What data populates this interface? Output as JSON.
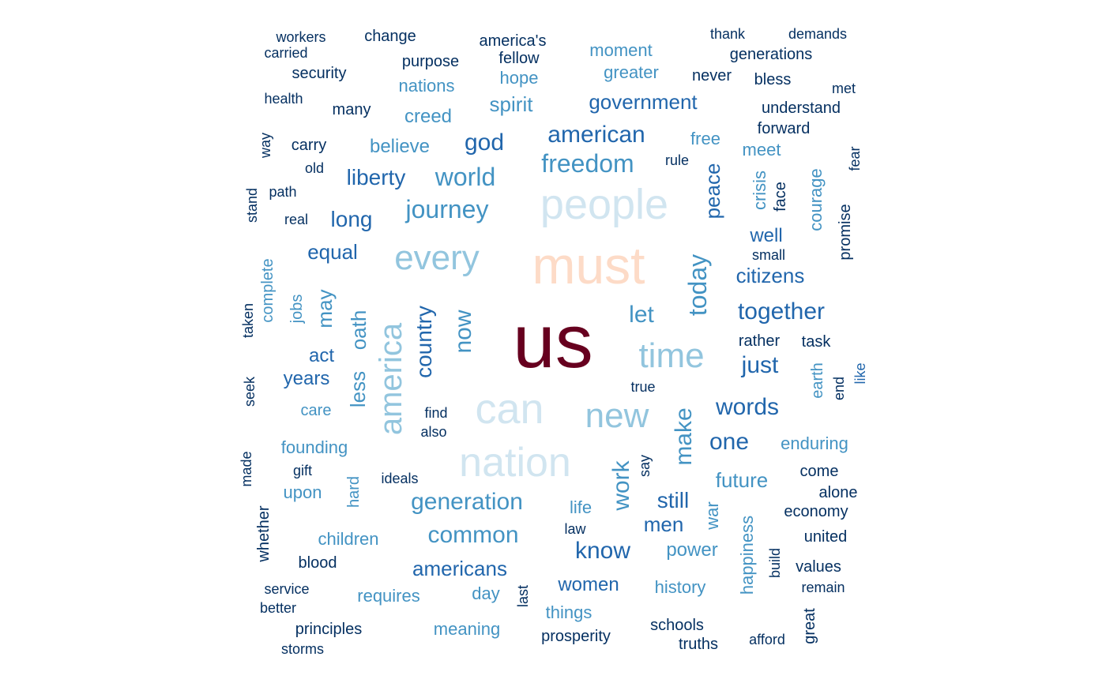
{
  "colors": {
    "c1": "#67001f",
    "c2": "#fddbc7",
    "c3": "#d1e5f0",
    "c4": "#92c5de",
    "c5": "#4393c3",
    "c6": "#2166ac",
    "c7": "#053061"
  },
  "words": [
    {
      "text": "us",
      "color": "c1"
    },
    {
      "text": "must",
      "color": "c2"
    },
    {
      "text": "people",
      "color": "c3"
    },
    {
      "text": "can",
      "color": "c3"
    },
    {
      "text": "nation",
      "color": "c3"
    },
    {
      "text": "every",
      "color": "c4"
    },
    {
      "text": "new",
      "color": "c4"
    },
    {
      "text": "time",
      "color": "c4"
    },
    {
      "text": "america",
      "color": "c4"
    },
    {
      "text": "journey",
      "color": "c5"
    },
    {
      "text": "world",
      "color": "c5"
    },
    {
      "text": "freedom",
      "color": "c5"
    },
    {
      "text": "today",
      "color": "c5"
    },
    {
      "text": "generation",
      "color": "c5"
    },
    {
      "text": "common",
      "color": "c5"
    },
    {
      "text": "work",
      "color": "c5"
    },
    {
      "text": "make",
      "color": "c5"
    },
    {
      "text": "let",
      "color": "c5"
    },
    {
      "text": "now",
      "color": "c5"
    },
    {
      "text": "country",
      "color": "c6"
    },
    {
      "text": "american",
      "color": "c6"
    },
    {
      "text": "god",
      "color": "c6"
    },
    {
      "text": "government",
      "color": "c6"
    },
    {
      "text": "liberty",
      "color": "c6"
    },
    {
      "text": "long",
      "color": "c6"
    },
    {
      "text": "equal",
      "color": "c6"
    },
    {
      "text": "together",
      "color": "c6"
    },
    {
      "text": "citizens",
      "color": "c6"
    },
    {
      "text": "words",
      "color": "c6"
    },
    {
      "text": "one",
      "color": "c6"
    },
    {
      "text": "just",
      "color": "c6"
    },
    {
      "text": "future",
      "color": "c5"
    },
    {
      "text": "still",
      "color": "c6"
    },
    {
      "text": "know",
      "color": "c6"
    },
    {
      "text": "men",
      "color": "c6"
    },
    {
      "text": "americans",
      "color": "c6"
    },
    {
      "text": "power",
      "color": "c5"
    },
    {
      "text": "women",
      "color": "c6"
    },
    {
      "text": "peace",
      "color": "c6"
    },
    {
      "text": "creed",
      "color": "c5"
    },
    {
      "text": "believe",
      "color": "c5"
    },
    {
      "text": "spirit",
      "color": "c5"
    },
    {
      "text": "oath",
      "color": "c5"
    },
    {
      "text": "less",
      "color": "c5"
    },
    {
      "text": "may",
      "color": "c5"
    },
    {
      "text": "act",
      "color": "c6"
    },
    {
      "text": "years",
      "color": "c6"
    },
    {
      "text": "care",
      "color": "c5"
    },
    {
      "text": "founding",
      "color": "c5"
    },
    {
      "text": "upon",
      "color": "c5"
    },
    {
      "text": "children",
      "color": "c5"
    },
    {
      "text": "requires",
      "color": "c5"
    },
    {
      "text": "day",
      "color": "c5"
    },
    {
      "text": "meaning",
      "color": "c5"
    },
    {
      "text": "things",
      "color": "c5"
    },
    {
      "text": "history",
      "color": "c5"
    },
    {
      "text": "life",
      "color": "c5"
    },
    {
      "text": "war",
      "color": "c5"
    },
    {
      "text": "happiness",
      "color": "c5"
    },
    {
      "text": "enduring",
      "color": "c5"
    },
    {
      "text": "well",
      "color": "c6"
    },
    {
      "text": "courage",
      "color": "c5"
    },
    {
      "text": "crisis",
      "color": "c5"
    },
    {
      "text": "meet",
      "color": "c5"
    },
    {
      "text": "free",
      "color": "c5"
    },
    {
      "text": "moment",
      "color": "c5"
    },
    {
      "text": "greater",
      "color": "c5"
    },
    {
      "text": "hope",
      "color": "c5"
    },
    {
      "text": "nations",
      "color": "c5"
    },
    {
      "text": "hard",
      "color": "c5"
    },
    {
      "text": "jobs",
      "color": "c5"
    },
    {
      "text": "complete",
      "color": "c5"
    },
    {
      "text": "earth",
      "color": "c5"
    },
    {
      "text": "workers",
      "color": "c7"
    },
    {
      "text": "carried",
      "color": "c7"
    },
    {
      "text": "change",
      "color": "c7"
    },
    {
      "text": "america's",
      "color": "c7"
    },
    {
      "text": "fellow",
      "color": "c7"
    },
    {
      "text": "purpose",
      "color": "c7"
    },
    {
      "text": "security",
      "color": "c7"
    },
    {
      "text": "thank",
      "color": "c7"
    },
    {
      "text": "demands",
      "color": "c7"
    },
    {
      "text": "generations",
      "color": "c7"
    },
    {
      "text": "never",
      "color": "c7"
    },
    {
      "text": "bless",
      "color": "c7"
    },
    {
      "text": "met",
      "color": "c7"
    },
    {
      "text": "health",
      "color": "c7"
    },
    {
      "text": "many",
      "color": "c7"
    },
    {
      "text": "understand",
      "color": "c7"
    },
    {
      "text": "forward",
      "color": "c7"
    },
    {
      "text": "way",
      "color": "c7"
    },
    {
      "text": "carry",
      "color": "c7"
    },
    {
      "text": "old",
      "color": "c7"
    },
    {
      "text": "rule",
      "color": "c7"
    },
    {
      "text": "fear",
      "color": "c7"
    },
    {
      "text": "face",
      "color": "c7"
    },
    {
      "text": "stand",
      "color": "c7"
    },
    {
      "text": "path",
      "color": "c7"
    },
    {
      "text": "real",
      "color": "c7"
    },
    {
      "text": "promise",
      "color": "c7"
    },
    {
      "text": "small",
      "color": "c7"
    },
    {
      "text": "taken",
      "color": "c7"
    },
    {
      "text": "rather",
      "color": "c7"
    },
    {
      "text": "task",
      "color": "c7"
    },
    {
      "text": "seek",
      "color": "c7"
    },
    {
      "text": "true",
      "color": "c7"
    },
    {
      "text": "like",
      "color": "c6"
    },
    {
      "text": "end",
      "color": "c7"
    },
    {
      "text": "find",
      "color": "c7"
    },
    {
      "text": "also",
      "color": "c7"
    },
    {
      "text": "made",
      "color": "c7"
    },
    {
      "text": "gift",
      "color": "c7"
    },
    {
      "text": "ideals",
      "color": "c7"
    },
    {
      "text": "say",
      "color": "c7"
    },
    {
      "text": "come",
      "color": "c7"
    },
    {
      "text": "alone",
      "color": "c7"
    },
    {
      "text": "economy",
      "color": "c7"
    },
    {
      "text": "united",
      "color": "c7"
    },
    {
      "text": "whether",
      "color": "c7"
    },
    {
      "text": "law",
      "color": "c7"
    },
    {
      "text": "blood",
      "color": "c7"
    },
    {
      "text": "build",
      "color": "c7"
    },
    {
      "text": "values",
      "color": "c7"
    },
    {
      "text": "service",
      "color": "c7"
    },
    {
      "text": "better",
      "color": "c7"
    },
    {
      "text": "last",
      "color": "c7"
    },
    {
      "text": "remain",
      "color": "c7"
    },
    {
      "text": "principles",
      "color": "c7"
    },
    {
      "text": "prosperity",
      "color": "c7"
    },
    {
      "text": "schools",
      "color": "c7"
    },
    {
      "text": "great",
      "color": "c7"
    },
    {
      "text": "storms",
      "color": "c7"
    },
    {
      "text": "truths",
      "color": "c7"
    },
    {
      "text": "afford",
      "color": "c7"
    }
  ]
}
